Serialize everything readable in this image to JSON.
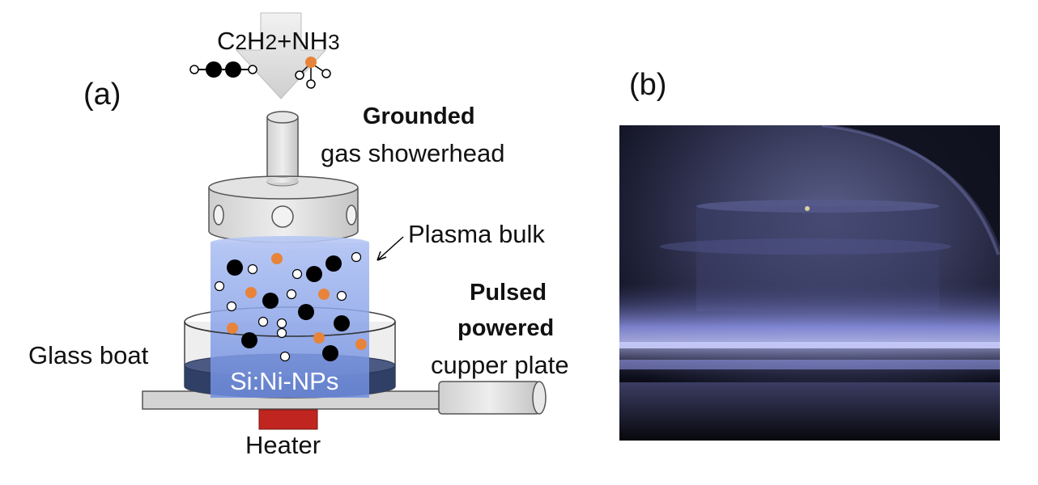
{
  "panel_a": {
    "label": "(a)",
    "gas_formula": "C2H2+NH3",
    "showerhead_line1": "Grounded",
    "showerhead_line2": "gas showerhead",
    "plasma_label": "Plasma bulk",
    "powered_line1": "Pulsed",
    "powered_line2": "powered",
    "powered_line3": "cupper plate",
    "boat_label": "Glass boat",
    "sample_label": "Si:Ni-NPs",
    "heater_label": "Heater",
    "colors": {
      "plasma": "#7f9be8",
      "heater": "#c0261f",
      "sample_layer": "#2f3f66",
      "orange_particle": "#e8833a",
      "black_particle": "#000000",
      "metal": "#d9d9d9"
    }
  },
  "panel_b": {
    "label": "(b)"
  }
}
